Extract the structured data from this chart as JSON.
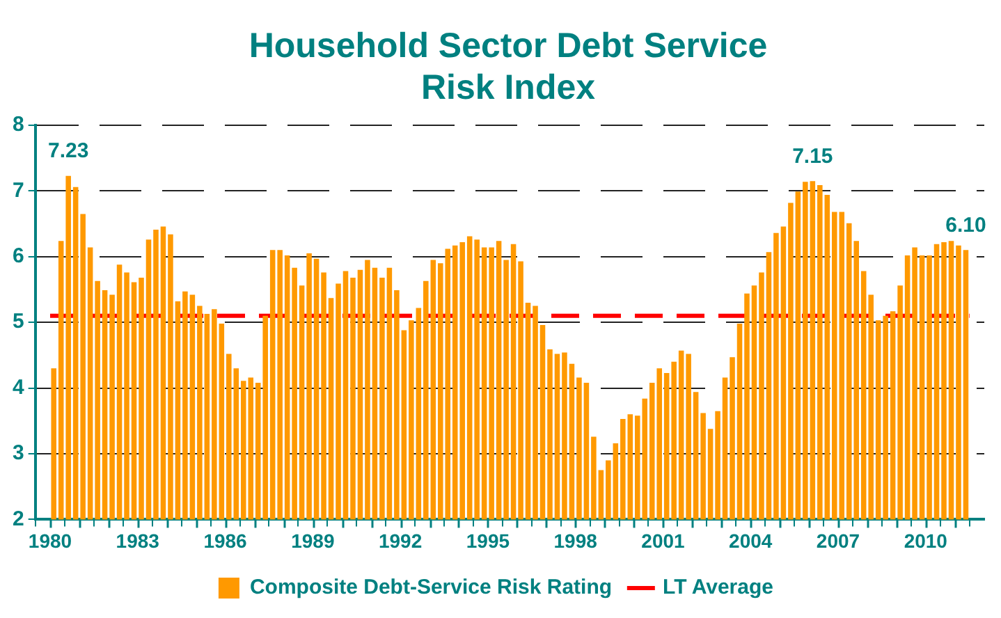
{
  "chart_data": {
    "type": "bar",
    "title": "Household Sector Debt Service Risk Index",
    "x": [
      1980.125,
      1980.375,
      1980.625,
      1980.875,
      1981.125,
      1981.375,
      1981.625,
      1981.875,
      1982.125,
      1982.375,
      1982.625,
      1982.875,
      1983.125,
      1983.375,
      1983.625,
      1983.875,
      1984.125,
      1984.375,
      1984.625,
      1984.875,
      1985.125,
      1985.375,
      1985.625,
      1985.875,
      1986.125,
      1986.375,
      1986.625,
      1986.875,
      1987.125,
      1987.375,
      1987.625,
      1987.875,
      1988.125,
      1988.375,
      1988.625,
      1988.875,
      1989.125,
      1989.375,
      1989.625,
      1989.875,
      1990.125,
      1990.375,
      1990.625,
      1990.875,
      1991.125,
      1991.375,
      1991.625,
      1991.875,
      1992.125,
      1992.375,
      1992.625,
      1992.875,
      1993.125,
      1993.375,
      1993.625,
      1993.875,
      1994.125,
      1994.375,
      1994.625,
      1994.875,
      1995.125,
      1995.375,
      1995.625,
      1995.875,
      1996.125,
      1996.375,
      1996.625,
      1996.875,
      1997.125,
      1997.375,
      1997.625,
      1997.875,
      1998.125,
      1998.375,
      1998.625,
      1998.875,
      1999.125,
      1999.375,
      1999.625,
      1999.875,
      2000.125,
      2000.375,
      2000.625,
      2000.875,
      2001.125,
      2001.375,
      2001.625,
      2001.875,
      2002.125,
      2002.375,
      2002.625,
      2002.875,
      2003.125,
      2003.375,
      2003.625,
      2003.875,
      2004.125,
      2004.375,
      2004.625,
      2004.875,
      2005.125,
      2005.375,
      2005.625,
      2005.875,
      2006.125,
      2006.375,
      2006.625,
      2006.875,
      2007.125,
      2007.375,
      2007.625,
      2007.875,
      2008.125,
      2008.375,
      2008.625,
      2008.875,
      2009.125,
      2009.375,
      2009.625,
      2009.875,
      2010.125,
      2010.375,
      2010.625,
      2010.875,
      2011.125,
      2011.375
    ],
    "series": [
      {
        "name": "Composite Debt-Service Risk Rating",
        "color": "#ff9900",
        "values": [
          4.3,
          6.24,
          7.23,
          7.06,
          6.65,
          6.14,
          5.63,
          5.49,
          5.42,
          5.88,
          5.76,
          5.61,
          5.68,
          6.26,
          6.41,
          6.46,
          6.34,
          5.32,
          5.47,
          5.42,
          5.25,
          5.13,
          5.2,
          4.98,
          4.52,
          4.3,
          4.11,
          4.16,
          4.08,
          5.1,
          6.1,
          6.1,
          6.02,
          5.83,
          5.56,
          6.05,
          5.97,
          5.76,
          5.37,
          5.59,
          5.78,
          5.68,
          5.8,
          5.95,
          5.83,
          5.68,
          5.83,
          5.49,
          4.88,
          5.03,
          5.22,
          5.63,
          5.95,
          5.9,
          6.12,
          6.17,
          6.22,
          6.31,
          6.26,
          6.14,
          6.14,
          6.24,
          5.95,
          6.19,
          5.93,
          5.3,
          5.25,
          4.96,
          4.59,
          4.52,
          4.54,
          4.37,
          4.16,
          4.08,
          3.26,
          2.75,
          2.9,
          3.16,
          3.53,
          3.6,
          3.58,
          3.84,
          4.08,
          4.3,
          4.23,
          4.4,
          4.57,
          4.52,
          3.94,
          3.62,
          3.38,
          3.65,
          4.16,
          4.47,
          4.98,
          5.44,
          5.56,
          5.76,
          6.07,
          6.36,
          6.46,
          6.82,
          6.99,
          7.14,
          7.15,
          7.09,
          6.94,
          6.68,
          6.68,
          6.51,
          6.24,
          5.78,
          5.42,
          5.03,
          5.1,
          5.17,
          5.56,
          6.02,
          6.14,
          6.02,
          6.02,
          6.19,
          6.22,
          6.24,
          6.17,
          6.1
        ]
      }
    ],
    "xlim": [
      1980,
      2011.5
    ],
    "xticks": [
      1980,
      {
        "value": 1981,
        "label": null
      },
      {
        "value": 1982,
        "label": null
      },
      1983,
      {
        "value": 1984,
        "label": null
      },
      {
        "value": 1985,
        "label": null
      },
      1986,
      {
        "value": 1987,
        "label": null
      },
      {
        "value": 1988,
        "label": null
      },
      1989,
      {
        "value": 1990,
        "label": null
      },
      {
        "value": 1991,
        "label": null
      },
      1992,
      {
        "value": 1993,
        "label": null
      },
      {
        "value": 1994,
        "label": null
      },
      1995,
      {
        "value": 1996,
        "label": null
      },
      {
        "value": 1997,
        "label": null
      },
      1998,
      {
        "value": 1999,
        "label": null
      },
      {
        "value": 2000,
        "label": null
      },
      2001,
      {
        "value": 2002,
        "label": null
      },
      {
        "value": 2003,
        "label": null
      },
      2004,
      {
        "value": 2005,
        "label": null
      },
      {
        "value": 2006,
        "label": null
      },
      2007,
      {
        "value": 2008,
        "label": null
      },
      {
        "value": 2009,
        "label": null
      },
      2010,
      {
        "value": 2011,
        "label": null
      }
    ],
    "ylim": [
      2,
      8
    ],
    "yticks": [
      2,
      3,
      4,
      5,
      6,
      7,
      8
    ],
    "ref_lines": [
      {
        "axis": "y",
        "value": 5.1,
        "label": "LT Average",
        "color": "#ff0000",
        "line_style": "dashed"
      }
    ],
    "annotations": [
      {
        "text": "7.23",
        "x": 1980.625,
        "y": 7.23
      },
      {
        "text": "7.15",
        "x": 2006.125,
        "y": 7.15
      },
      {
        "text": "6.10",
        "x": 2011.375,
        "y": 6.1
      }
    ],
    "grid": "y",
    "legend": "bottom"
  }
}
